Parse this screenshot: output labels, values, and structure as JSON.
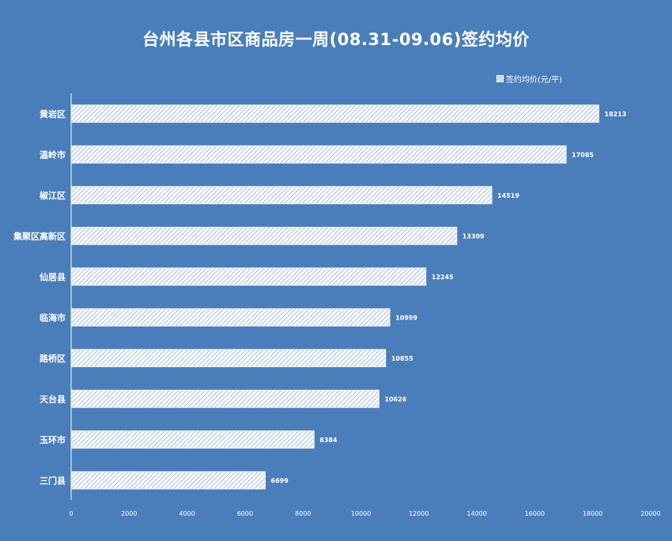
{
  "chart_data": {
    "type": "bar",
    "orientation": "horizontal",
    "title": "台州各县市区商品房一周(08.31-09.06)签约均价",
    "categories": [
      "黄岩区",
      "温岭市",
      "椒江区",
      "集聚区高新区",
      "仙居县",
      "临海市",
      "路桥区",
      "天台县",
      "玉环市",
      "三门县"
    ],
    "series": [
      {
        "name": "签约均价(元/平)",
        "values": [
          18213,
          17085,
          14519,
          13309,
          12245,
          10999,
          10855,
          10626,
          8384,
          6699
        ]
      }
    ],
    "xlim": [
      0,
      20000
    ],
    "xticks": [
      0,
      2000,
      4000,
      6000,
      8000,
      10000,
      12000,
      14000,
      16000,
      18000,
      20000
    ],
    "grid": false,
    "legend_position": "top-right",
    "colors": {
      "background": "#4a7ebb",
      "bar_fill": "#ffffff",
      "bar_hatch": "#8fa9d6",
      "text": "#ffffff"
    }
  }
}
